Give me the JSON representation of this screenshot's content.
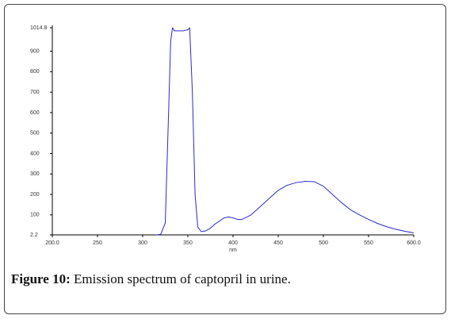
{
  "chart_data": {
    "type": "line",
    "xlabel": "nm",
    "x": [
      315,
      320,
      325,
      328,
      331,
      333,
      335,
      340,
      345,
      350,
      352,
      355,
      358,
      361,
      365,
      370,
      375,
      380,
      390,
      395,
      400,
      405,
      410,
      420,
      430,
      440,
      450,
      460,
      470,
      480,
      490,
      500,
      510,
      520,
      530,
      540,
      550,
      560,
      570,
      580,
      590,
      600
    ],
    "series": [
      {
        "color": "#2a2ad4",
        "values": [
          2.2,
          5,
          60,
          500,
          950,
          1014.8,
          1000,
          1000,
          1000,
          1005,
          1014.8,
          700,
          200,
          40,
          18,
          22,
          35,
          55,
          85,
          90,
          85,
          78,
          78,
          100,
          140,
          180,
          220,
          245,
          258,
          264,
          262,
          240,
          200,
          160,
          125,
          100,
          78,
          58,
          42,
          30,
          20,
          12
        ]
      }
    ],
    "xlim": [
      200,
      600
    ],
    "xticks": [
      {
        "value": 200,
        "label": "200.0"
      },
      250,
      300,
      350,
      400,
      450,
      500,
      550,
      {
        "value": 600,
        "label": "600.0"
      }
    ],
    "ylim": [
      2.2,
      1014.8
    ],
    "yticks": [
      2.2,
      100,
      200,
      300,
      400,
      500,
      600,
      700,
      800,
      900,
      1014.8
    ]
  },
  "caption": {
    "label": "Figure 10:",
    "text": "Emission spectrum of captopril in urine."
  }
}
